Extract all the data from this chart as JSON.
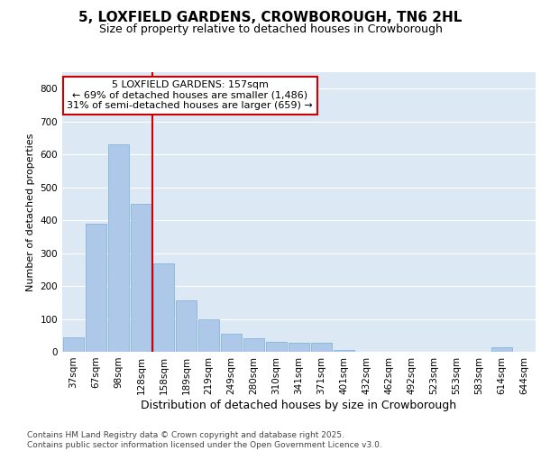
{
  "title": "5, LOXFIELD GARDENS, CROWBOROUGH, TN6 2HL",
  "subtitle": "Size of property relative to detached houses in Crowborough",
  "xlabel": "Distribution of detached houses by size in Crowborough",
  "ylabel": "Number of detached properties",
  "bar_color": "#adc8e8",
  "bar_edge_color": "#7aadd4",
  "background_color": "#dce9f5",
  "grid_color": "#ffffff",
  "categories": [
    "37sqm",
    "67sqm",
    "98sqm",
    "128sqm",
    "158sqm",
    "189sqm",
    "219sqm",
    "249sqm",
    "280sqm",
    "310sqm",
    "341sqm",
    "371sqm",
    "401sqm",
    "432sqm",
    "462sqm",
    "492sqm",
    "523sqm",
    "553sqm",
    "583sqm",
    "614sqm",
    "644sqm"
  ],
  "values": [
    45,
    390,
    630,
    450,
    270,
    155,
    100,
    55,
    40,
    30,
    28,
    28,
    5,
    0,
    0,
    0,
    0,
    0,
    0,
    15,
    0
  ],
  "ylim": [
    0,
    850
  ],
  "yticks": [
    0,
    100,
    200,
    300,
    400,
    500,
    600,
    700,
    800
  ],
  "property_line_color": "#cc0000",
  "annotation_text": "5 LOXFIELD GARDENS: 157sqm\n← 69% of detached houses are smaller (1,486)\n31% of semi-detached houses are larger (659) →",
  "annotation_box_color": "#ffffff",
  "annotation_box_edge": "#cc0000",
  "footnote": "Contains HM Land Registry data © Crown copyright and database right 2025.\nContains public sector information licensed under the Open Government Licence v3.0.",
  "title_fontsize": 11,
  "subtitle_fontsize": 9,
  "xlabel_fontsize": 9,
  "ylabel_fontsize": 8,
  "tick_fontsize": 7.5,
  "annotation_fontsize": 8,
  "footnote_fontsize": 6.5
}
